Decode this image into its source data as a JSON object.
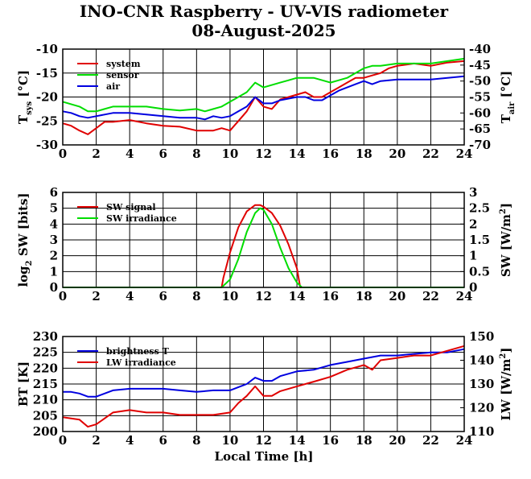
{
  "title": "INO-CNR Raspberry - UV-VIS radiometer",
  "subtitle": "08-August-2025",
  "xlabel": "Local Time [h]",
  "colors": {
    "red": "#e00000",
    "green": "#00dd00",
    "blue": "#0000e0",
    "axis": "#000000"
  },
  "chart_data": [
    {
      "type": "line",
      "panel": "temperatures",
      "xlim": [
        0,
        24
      ],
      "ylim": [
        -30,
        -10
      ],
      "y2lim": [
        -70,
        -40
      ],
      "ylabel": "T",
      "ylabel_sub": "sys",
      "ylabel_unit": " [°C]",
      "y2label": "T",
      "y2label_sub": "air",
      "y2label_unit": " [°C]",
      "xticks": [
        "0",
        "2",
        "4",
        "6",
        "8",
        "10",
        "12",
        "14",
        "16",
        "18",
        "20",
        "22",
        "24"
      ],
      "yticks": [
        "-30",
        "-25",
        "-20",
        "-15",
        "-10"
      ],
      "y2ticks": [
        "-70",
        "-65",
        "-60",
        "-55",
        "-50",
        "-45",
        "-40"
      ],
      "legend_position": "top-left",
      "series": [
        {
          "name": "system",
          "color": "#e00000",
          "axis": "left",
          "x": [
            0,
            0.5,
            1,
            1.5,
            2,
            2.5,
            3,
            4,
            5,
            6,
            7,
            8,
            9,
            9.5,
            10,
            10.5,
            11,
            11.5,
            12,
            12.5,
            13,
            14,
            14.5,
            15,
            15.5,
            16,
            16.5,
            17,
            17.5,
            18,
            18.5,
            19,
            19.5,
            20,
            21,
            22,
            23,
            24
          ],
          "y": [
            -25.5,
            -26,
            -27,
            -27.8,
            -26.5,
            -25.2,
            -25.2,
            -24.8,
            -25.5,
            -26,
            -26.2,
            -27,
            -27,
            -26.5,
            -27,
            -25,
            -23,
            -20,
            -22,
            -22.5,
            -20.5,
            -19.5,
            -19,
            -20,
            -20,
            -19,
            -18,
            -17,
            -16,
            -16,
            -15.5,
            -15,
            -14,
            -13.5,
            -13,
            -13.5,
            -12.8,
            -12.5
          ]
        },
        {
          "name": "sensor",
          "color": "#00dd00",
          "axis": "left",
          "x": [
            0,
            0.5,
            1,
            1.5,
            2,
            3,
            4,
            5,
            6,
            7,
            8,
            8.5,
            9,
            9.5,
            10,
            10.5,
            11,
            11.5,
            12,
            13,
            13.5,
            14,
            15,
            16,
            16.5,
            17,
            17.5,
            18,
            18.5,
            19,
            20,
            21,
            22,
            23,
            24
          ],
          "y": [
            -21,
            -21.5,
            -22,
            -23,
            -23,
            -22,
            -22,
            -22,
            -22.5,
            -22.8,
            -22.5,
            -23,
            -22.5,
            -22,
            -21,
            -20,
            -19,
            -17,
            -18,
            -17,
            -16.5,
            -16,
            -16,
            -17,
            -16.5,
            -16,
            -15,
            -14,
            -13.5,
            -13.5,
            -13,
            -13,
            -13,
            -12.5,
            -12
          ]
        },
        {
          "name": "air",
          "color": "#0000e0",
          "axis": "right",
          "x": [
            0,
            0.5,
            1,
            1.5,
            2,
            3,
            4,
            5,
            6,
            7,
            8,
            8.5,
            9,
            9.5,
            10,
            10.5,
            11,
            11.5,
            12,
            12.5,
            13,
            14,
            14.5,
            15,
            15.5,
            16,
            16.5,
            17,
            17.5,
            18,
            18.5,
            19,
            20,
            21,
            22,
            23,
            24
          ],
          "y": [
            -59.5,
            -60,
            -61,
            -61.5,
            -61,
            -60,
            -60,
            -60.5,
            -61,
            -61.5,
            -61.5,
            -62,
            -61,
            -61.5,
            -61,
            -59.5,
            -58,
            -55,
            -57,
            -57,
            -56,
            -55,
            -55,
            -56,
            -56,
            -54.5,
            -53,
            -52,
            -51,
            -50,
            -51,
            -50,
            -49.5,
            -49.5,
            -49.5,
            -49,
            -48.5
          ]
        }
      ]
    },
    {
      "type": "line",
      "panel": "shortwave",
      "xlim": [
        0,
        24
      ],
      "ylim": [
        0,
        6
      ],
      "y2lim": [
        0,
        3
      ],
      "ylabel": "log",
      "ylabel_sub": "2",
      "ylabel_unit": " SW [bits]",
      "y2label": "SW [W/m",
      "y2label_sup": "2",
      "y2label_unit": "]",
      "xticks": [
        "0",
        "2",
        "4",
        "6",
        "8",
        "10",
        "12",
        "14",
        "16",
        "18",
        "20",
        "22",
        "24"
      ],
      "yticks": [
        "0",
        "1",
        "2",
        "3",
        "4",
        "5",
        "6"
      ],
      "y2ticks": [
        "0",
        "0.5",
        "1",
        "1.5",
        "2",
        "2.5",
        "3"
      ],
      "legend_position": "top-left",
      "series": [
        {
          "name": "SW signal",
          "color": "#e00000",
          "axis": "left",
          "x": [
            0,
            9.5,
            9.6,
            10,
            10.5,
            11,
            11.5,
            11.8,
            12,
            12.5,
            13,
            13.5,
            14,
            14.2,
            24
          ],
          "y": [
            0,
            0,
            0.6,
            2.2,
            3.8,
            4.8,
            5.2,
            5.2,
            5.1,
            4.7,
            3.9,
            2.7,
            1.2,
            0,
            0
          ]
        },
        {
          "name": "SW irradiance",
          "color": "#00dd00",
          "axis": "left",
          "x": [
            0,
            9.5,
            10,
            10.5,
            11,
            11.5,
            11.8,
            12,
            12.5,
            13,
            13.5,
            14,
            14.3,
            24
          ],
          "y": [
            0,
            0,
            0.5,
            1.8,
            3.5,
            4.7,
            5.0,
            4.9,
            4.0,
            2.5,
            1.2,
            0.3,
            0,
            0
          ]
        }
      ]
    },
    {
      "type": "line",
      "panel": "longwave",
      "xlim": [
        0,
        24
      ],
      "ylim": [
        200,
        230
      ],
      "y2lim": [
        110,
        150
      ],
      "ylabel": "BT [K]",
      "y2label": "LW [W/m",
      "y2label_sup": "2",
      "y2label_unit": "]",
      "xticks": [
        "0",
        "2",
        "4",
        "6",
        "8",
        "10",
        "12",
        "14",
        "16",
        "18",
        "20",
        "22",
        "24"
      ],
      "yticks": [
        "200",
        "205",
        "210",
        "215",
        "220",
        "225",
        "230"
      ],
      "y2ticks": [
        "110",
        "120",
        "130",
        "140",
        "150"
      ],
      "legend_position": "top-left",
      "series": [
        {
          "name": "brightness T",
          "color": "#0000e0",
          "axis": "left",
          "x": [
            0,
            0.5,
            1,
            1.5,
            2,
            3,
            4,
            5,
            6,
            7,
            8,
            9,
            10,
            10.5,
            11,
            11.5,
            12,
            12.5,
            13,
            14,
            15,
            16,
            17,
            18,
            19,
            20,
            21,
            22,
            23,
            24
          ],
          "y": [
            212.5,
            212.5,
            212,
            211,
            211,
            213,
            213.5,
            213.5,
            213.5,
            213,
            212.5,
            213,
            213,
            214,
            215,
            217,
            216,
            216,
            217.5,
            219,
            219.5,
            221,
            222,
            223,
            224,
            224,
            224.5,
            225,
            225,
            226
          ]
        },
        {
          "name": "LW irradiance",
          "color": "#e00000",
          "axis": "right",
          "x": [
            0,
            1,
            1.5,
            2,
            3,
            4,
            5,
            6,
            7,
            8,
            9,
            10,
            10.5,
            11,
            11.5,
            12,
            12.5,
            13,
            13.5,
            14,
            15,
            16,
            17,
            18,
            18.5,
            19,
            20,
            21,
            22,
            23,
            24
          ],
          "y": [
            116,
            115,
            112,
            113,
            118,
            119,
            118,
            118,
            117,
            117,
            117,
            118,
            122,
            125,
            129,
            125,
            125,
            127,
            128,
            129,
            131,
            133,
            136,
            138,
            136,
            140,
            141,
            142,
            142,
            144,
            146
          ]
        }
      ]
    }
  ]
}
